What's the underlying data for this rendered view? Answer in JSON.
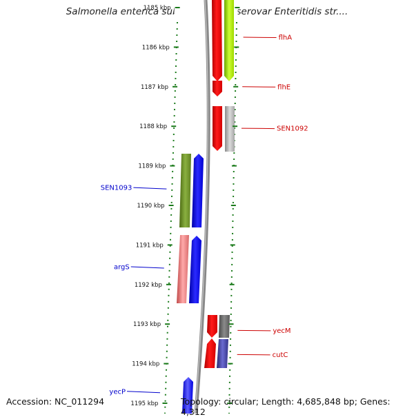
{
  "title": "Salmonella enterica subsp. enterica serovar Enteritidis str....",
  "footer": {
    "accession": "Accession: NC_011294",
    "topology": "Topology: circular; Length: 4,685,848 bp; Genes: 4,312"
  },
  "colors": {
    "tick": "#1a7a1a",
    "backbone": "#888888",
    "forward_label": "#cc0000",
    "reverse_label": "#0000cc"
  },
  "kbp_ticks": [
    {
      "label": "1185 kbp",
      "pos": 1185
    },
    {
      "label": "1186 kbp",
      "pos": 1186
    },
    {
      "label": "1187 kbp",
      "pos": 1187
    },
    {
      "label": "1188 kbp",
      "pos": 1188
    },
    {
      "label": "1189 kbp",
      "pos": 1189
    },
    {
      "label": "1190 kbp",
      "pos": 1190
    },
    {
      "label": "1191 kbp",
      "pos": 1191
    },
    {
      "label": "1192 kbp",
      "pos": 1192
    },
    {
      "label": "1193 kbp",
      "pos": 1193
    },
    {
      "label": "1194 kbp",
      "pos": 1194
    },
    {
      "label": "1195 kbp",
      "pos": 1195
    }
  ],
  "gene_labels": [
    {
      "name": "flhA",
      "side": "right",
      "pos": 1185.75
    },
    {
      "name": "flhE",
      "side": "right",
      "pos": 1187.0
    },
    {
      "name": "SEN1092",
      "side": "right",
      "pos": 1188.05
    },
    {
      "name": "SEN1093",
      "side": "left",
      "pos": 1189.55
    },
    {
      "name": "argS",
      "side": "left",
      "pos": 1191.55
    },
    {
      "name": "yecM",
      "side": "right",
      "pos": 1193.16
    },
    {
      "name": "cutC",
      "side": "right",
      "pos": 1193.77
    },
    {
      "name": "yecP",
      "side": "left",
      "pos": 1194.7
    }
  ]
}
